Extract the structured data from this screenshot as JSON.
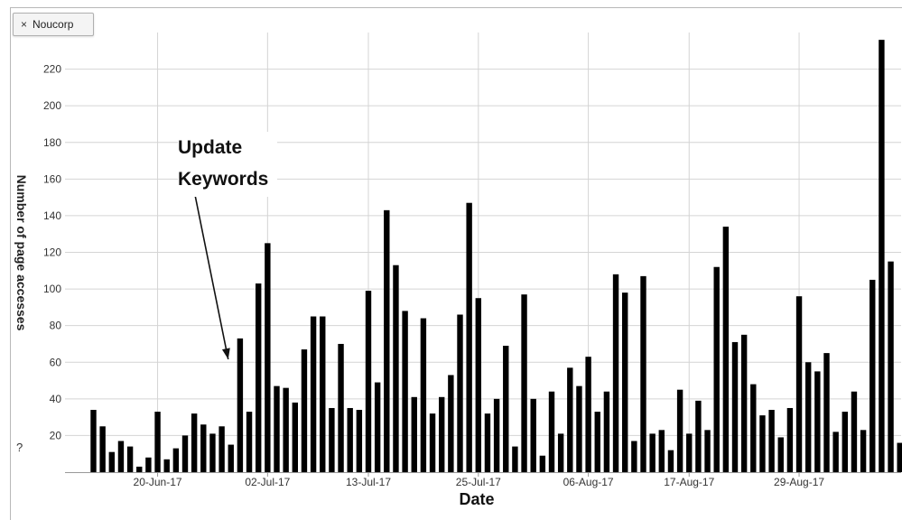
{
  "series_button": {
    "icon": "close-icon",
    "label": "Noucorp"
  },
  "help_icon": "?",
  "annotation": {
    "line1": "Update",
    "line2": "Keywords",
    "target_index": 15
  },
  "chart_data": {
    "type": "bar",
    "title": "",
    "xlabel": "Date",
    "ylabel": "Number of page accesses",
    "ylim": [
      0,
      240
    ],
    "yticks": [
      20,
      40,
      60,
      80,
      100,
      120,
      140,
      160,
      180,
      200,
      220
    ],
    "grid": true,
    "bar_color": "#000000",
    "x_tick_labels": [
      {
        "label": "20-Jun-17",
        "index": 7
      },
      {
        "label": "02-Jul-17",
        "index": 19
      },
      {
        "label": "13-Jul-17",
        "index": 30
      },
      {
        "label": "25-Jul-17",
        "index": 42
      },
      {
        "label": "06-Aug-17",
        "index": 54
      },
      {
        "label": "17-Aug-17",
        "index": 65
      },
      {
        "label": "29-Aug-17",
        "index": 77
      }
    ],
    "values": [
      34,
      25,
      11,
      17,
      14,
      3,
      8,
      33,
      7,
      13,
      20,
      32,
      26,
      21,
      25,
      15,
      73,
      33,
      103,
      125,
      47,
      46,
      38,
      67,
      85,
      85,
      35,
      70,
      35,
      34,
      99,
      49,
      143,
      113,
      88,
      41,
      84,
      32,
      41,
      53,
      86,
      147,
      95,
      32,
      40,
      69,
      14,
      97,
      40,
      9,
      44,
      21,
      57,
      47,
      63,
      33,
      44,
      108,
      98,
      17,
      107,
      21,
      23,
      12,
      45,
      21,
      39,
      23,
      112,
      134,
      71,
      75,
      48,
      31,
      34,
      19,
      35,
      96,
      60,
      55,
      65,
      22,
      33,
      44,
      23,
      105,
      236,
      115,
      16
    ]
  }
}
